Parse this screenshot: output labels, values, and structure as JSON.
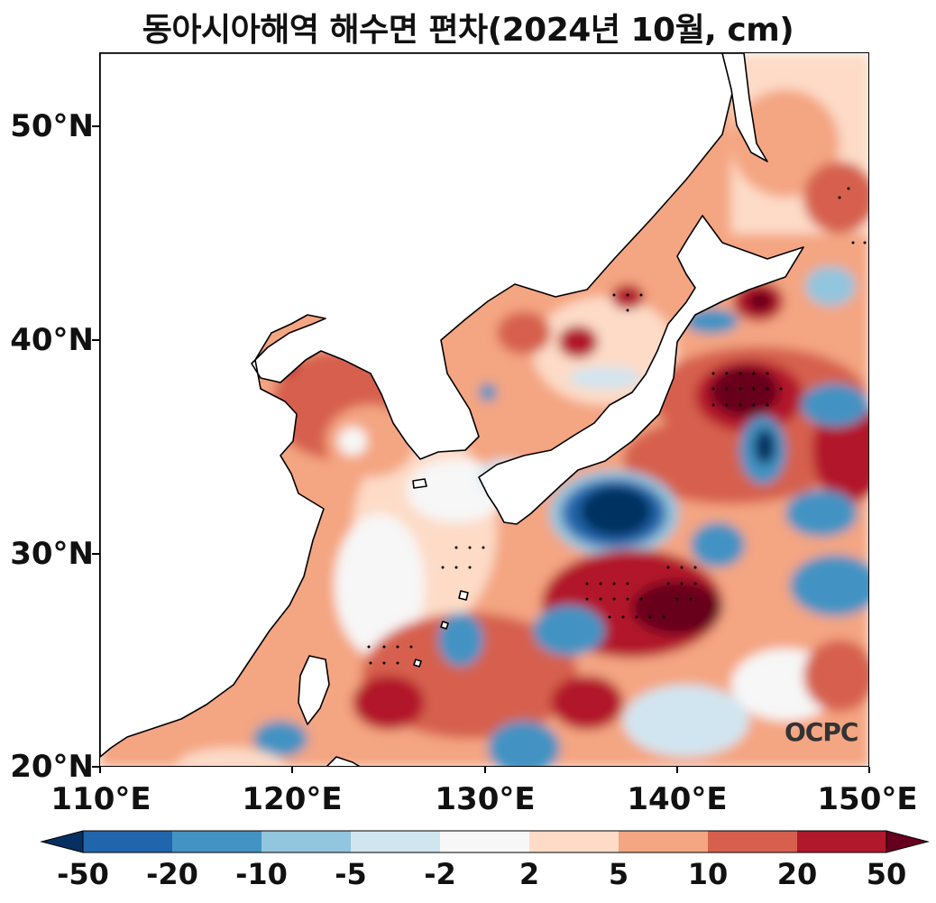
{
  "title": "동아시아해역 해수면 편차(2024년 10월, cm)",
  "map": {
    "lon_range": [
      110,
      150
    ],
    "lat_range": [
      20,
      53.5
    ],
    "y_ticks": [
      "50°N",
      "40°N",
      "30°N",
      "20°N"
    ],
    "y_tick_values": [
      50,
      40,
      30,
      20
    ],
    "x_ticks": [
      "110°E",
      "120°E",
      "130°E",
      "140°E",
      "150°E"
    ],
    "x_tick_values": [
      110,
      120,
      130,
      140,
      150
    ],
    "land_color": "#ffffff",
    "coastline_color": "#000000",
    "stipple_meaning": "significant"
  },
  "colorbar": {
    "labels": [
      "-50",
      "-20",
      "-10",
      "-5",
      "-2",
      "2",
      "5",
      "10",
      "20",
      "50"
    ],
    "colors": [
      "#053061",
      "#2166ac",
      "#4393c3",
      "#92c5de",
      "#d1e5f0",
      "#f7f7f7",
      "#fddbc7",
      "#f4a582",
      "#d6604d",
      "#b2182b",
      "#67001f"
    ],
    "extend": "both"
  },
  "watermark": "OCPC"
}
